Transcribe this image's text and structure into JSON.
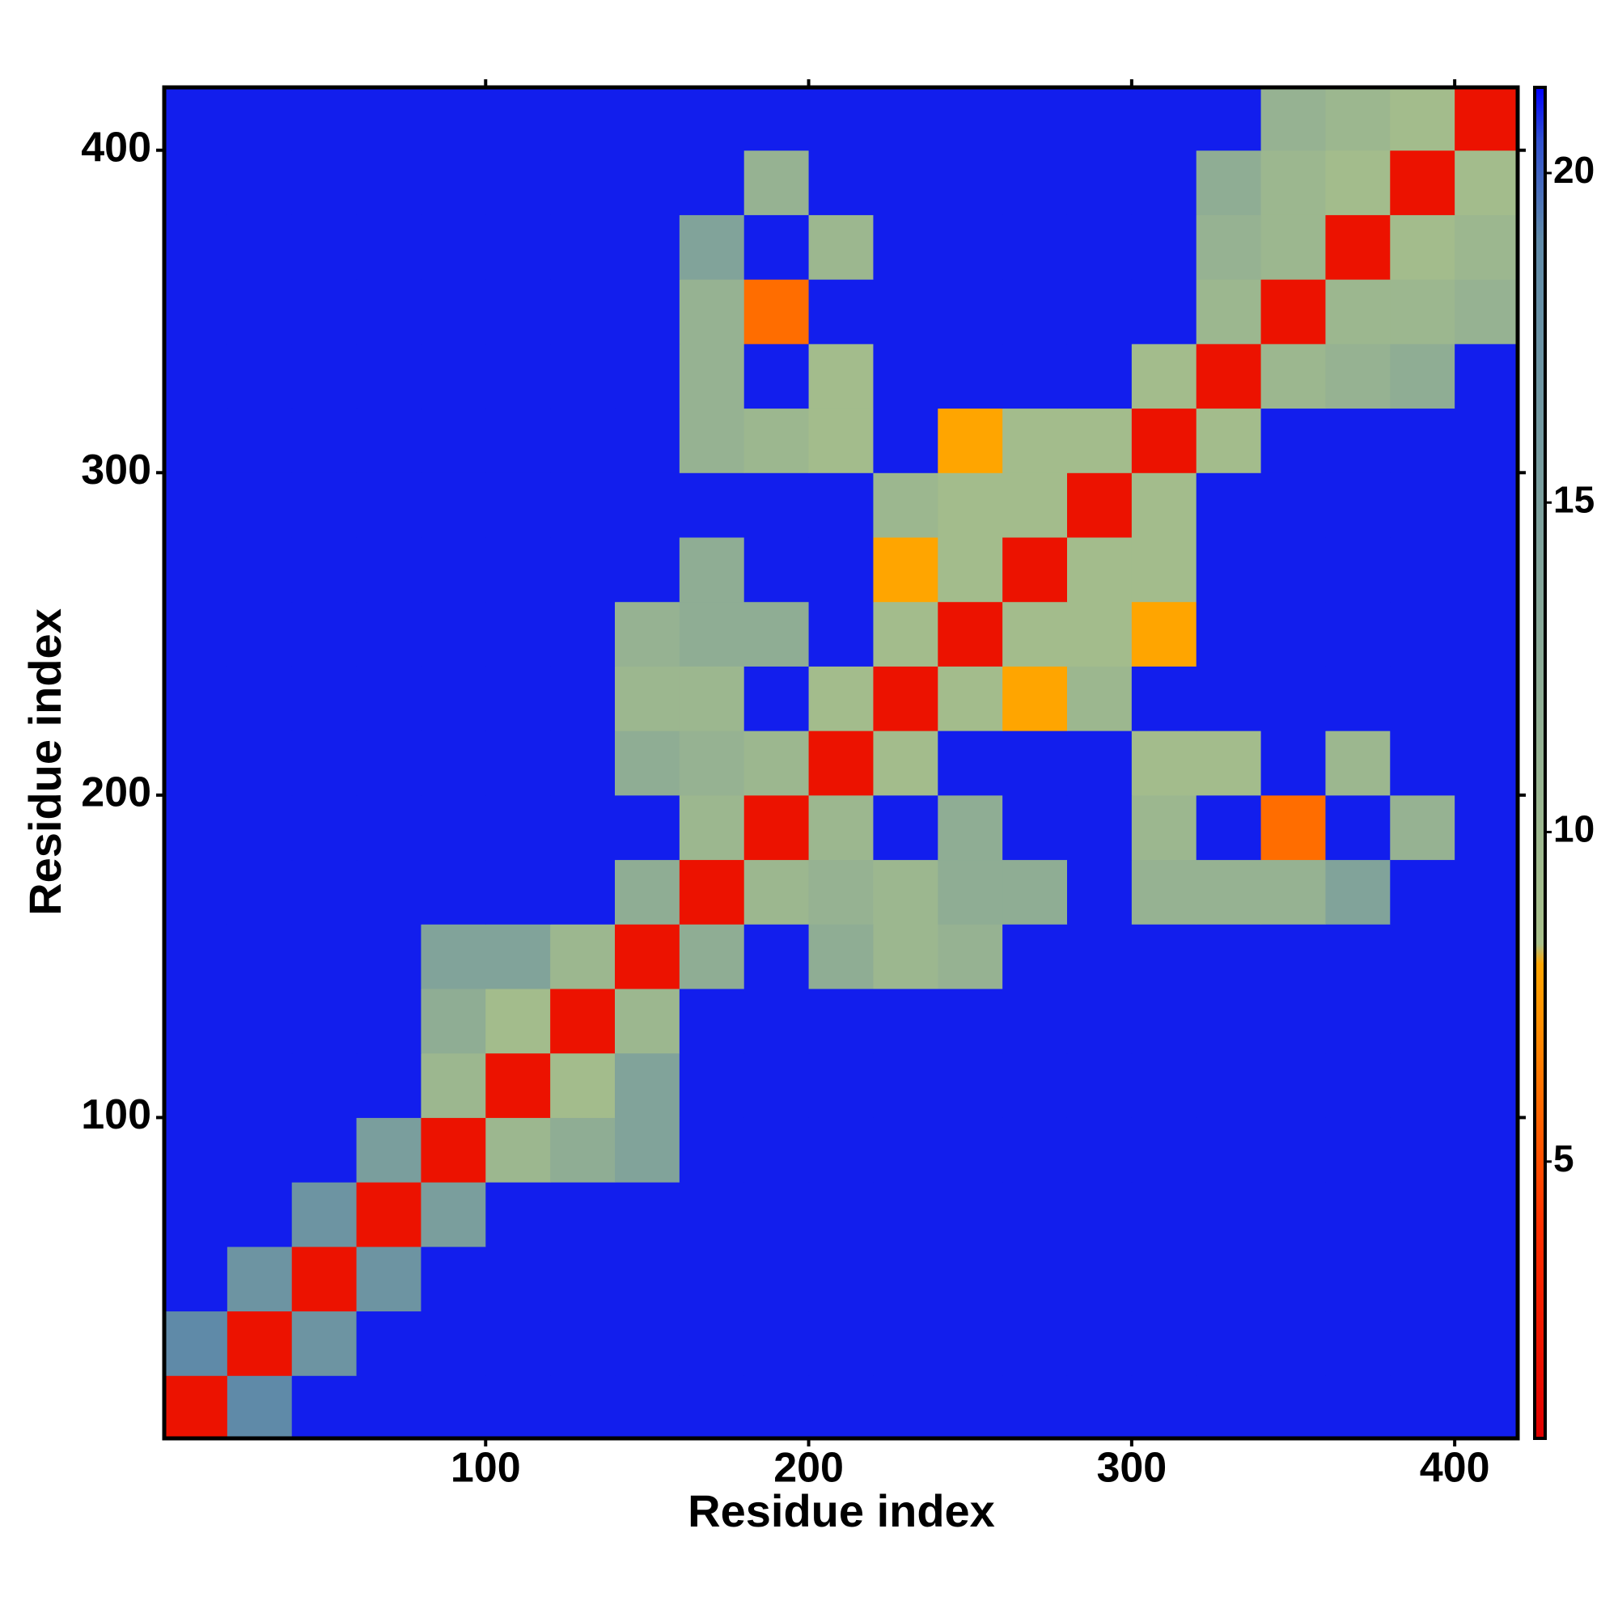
{
  "chart_data": {
    "type": "heatmap",
    "x_label": "Residue index",
    "y_label": "Residue index",
    "bins": [
      0.5,
      20,
      40,
      60,
      80,
      100,
      120,
      140,
      160,
      180,
      200,
      220,
      240,
      260,
      280,
      300,
      320,
      340,
      360,
      380,
      400,
      419.5
    ],
    "xlim": [
      0.5,
      419.5
    ],
    "ylim": [
      0.5,
      419.5
    ],
    "xticks": [
      100,
      200,
      300,
      400
    ],
    "yticks": [
      100,
      200,
      300,
      400
    ],
    "z": [
      [
        2,
        19,
        21,
        21,
        21,
        21,
        21,
        21,
        21,
        21,
        21,
        21,
        21,
        21,
        21,
        21,
        21,
        21,
        21,
        21,
        21
      ],
      [
        19,
        2,
        17,
        21,
        21,
        21,
        21,
        21,
        21,
        21,
        21,
        21,
        21,
        21,
        21,
        21,
        21,
        21,
        21,
        21,
        21
      ],
      [
        21,
        17,
        2,
        17,
        21,
        21,
        21,
        21,
        21,
        21,
        21,
        21,
        21,
        21,
        21,
        21,
        21,
        21,
        21,
        21,
        21
      ],
      [
        21,
        21,
        17,
        2,
        15,
        21,
        21,
        21,
        21,
        21,
        21,
        21,
        21,
        21,
        21,
        21,
        21,
        21,
        21,
        21,
        21
      ],
      [
        21,
        21,
        21,
        15,
        2,
        10,
        12,
        14,
        21,
        21,
        21,
        21,
        21,
        21,
        21,
        21,
        21,
        21,
        21,
        21,
        21
      ],
      [
        21,
        21,
        21,
        21,
        10,
        2,
        9,
        14,
        21,
        21,
        21,
        21,
        21,
        21,
        21,
        21,
        21,
        21,
        21,
        21,
        21
      ],
      [
        21,
        21,
        21,
        21,
        12,
        9,
        2,
        10,
        21,
        21,
        21,
        21,
        21,
        21,
        21,
        21,
        21,
        21,
        21,
        21,
        21
      ],
      [
        21,
        21,
        21,
        21,
        14,
        14,
        10,
        2,
        12,
        21,
        12,
        10,
        11,
        21,
        21,
        21,
        21,
        21,
        21,
        21,
        21
      ],
      [
        21,
        21,
        21,
        21,
        21,
        21,
        21,
        12,
        2,
        10,
        11,
        10,
        12,
        12,
        21,
        11,
        11,
        11,
        14,
        21,
        21
      ],
      [
        21,
        21,
        21,
        21,
        21,
        21,
        21,
        21,
        10,
        2,
        10,
        21,
        12,
        21,
        21,
        10,
        21,
        6,
        21,
        11,
        21
      ],
      [
        21,
        21,
        21,
        21,
        21,
        21,
        21,
        12,
        11,
        10,
        2,
        9,
        21,
        21,
        21,
        9,
        9,
        21,
        10,
        21,
        21
      ],
      [
        21,
        21,
        21,
        21,
        21,
        21,
        21,
        10,
        10,
        21,
        9,
        2,
        9,
        8,
        10,
        21,
        21,
        21,
        21,
        21,
        21
      ],
      [
        21,
        21,
        21,
        21,
        21,
        21,
        21,
        11,
        12,
        12,
        21,
        9,
        2,
        9,
        9,
        8,
        21,
        21,
        21,
        21,
        21
      ],
      [
        21,
        21,
        21,
        21,
        21,
        21,
        21,
        21,
        12,
        21,
        21,
        8,
        9,
        2,
        9,
        9,
        21,
        21,
        21,
        21,
        21
      ],
      [
        21,
        21,
        21,
        21,
        21,
        21,
        21,
        21,
        21,
        21,
        21,
        10,
        9,
        9,
        2,
        9,
        21,
        21,
        21,
        21,
        21
      ],
      [
        21,
        21,
        21,
        21,
        21,
        21,
        21,
        21,
        11,
        10,
        9,
        21,
        8,
        9,
        9,
        2,
        9,
        21,
        21,
        21,
        21
      ],
      [
        21,
        21,
        21,
        21,
        21,
        21,
        21,
        21,
        11,
        21,
        9,
        21,
        21,
        21,
        21,
        9,
        2,
        10,
        11,
        12,
        21
      ],
      [
        21,
        21,
        21,
        21,
        21,
        21,
        21,
        21,
        11,
        6,
        21,
        21,
        21,
        21,
        21,
        21,
        10,
        2,
        10,
        10,
        11
      ],
      [
        21,
        21,
        21,
        21,
        21,
        21,
        21,
        21,
        14,
        21,
        10,
        21,
        21,
        21,
        21,
        21,
        11,
        10,
        2,
        9,
        10
      ],
      [
        21,
        21,
        21,
        21,
        21,
        21,
        21,
        21,
        21,
        11,
        21,
        21,
        21,
        21,
        21,
        21,
        12,
        10,
        9,
        2,
        9
      ],
      [
        21,
        21,
        21,
        21,
        21,
        21,
        21,
        21,
        21,
        21,
        21,
        21,
        21,
        21,
        21,
        21,
        21,
        11,
        10,
        9,
        2
      ]
    ],
    "colorbar": {
      "lim": [
        0.8,
        21.3
      ],
      "ticks": [
        5,
        10,
        15,
        20
      ],
      "stops": [
        {
          "value": 0.8,
          "color": "#e00000"
        },
        {
          "value": 4,
          "color": "#ff3000"
        },
        {
          "value": 7,
          "color": "#ff8c00"
        },
        {
          "value": 8,
          "color": "#ffa500"
        },
        {
          "value": 8.3,
          "color": "#a8c08a"
        },
        {
          "value": 19,
          "color": "#5f8aa8"
        },
        {
          "value": 20.5,
          "color": "#3050d0"
        },
        {
          "value": 21.3,
          "color": "#0000ff"
        }
      ]
    }
  }
}
